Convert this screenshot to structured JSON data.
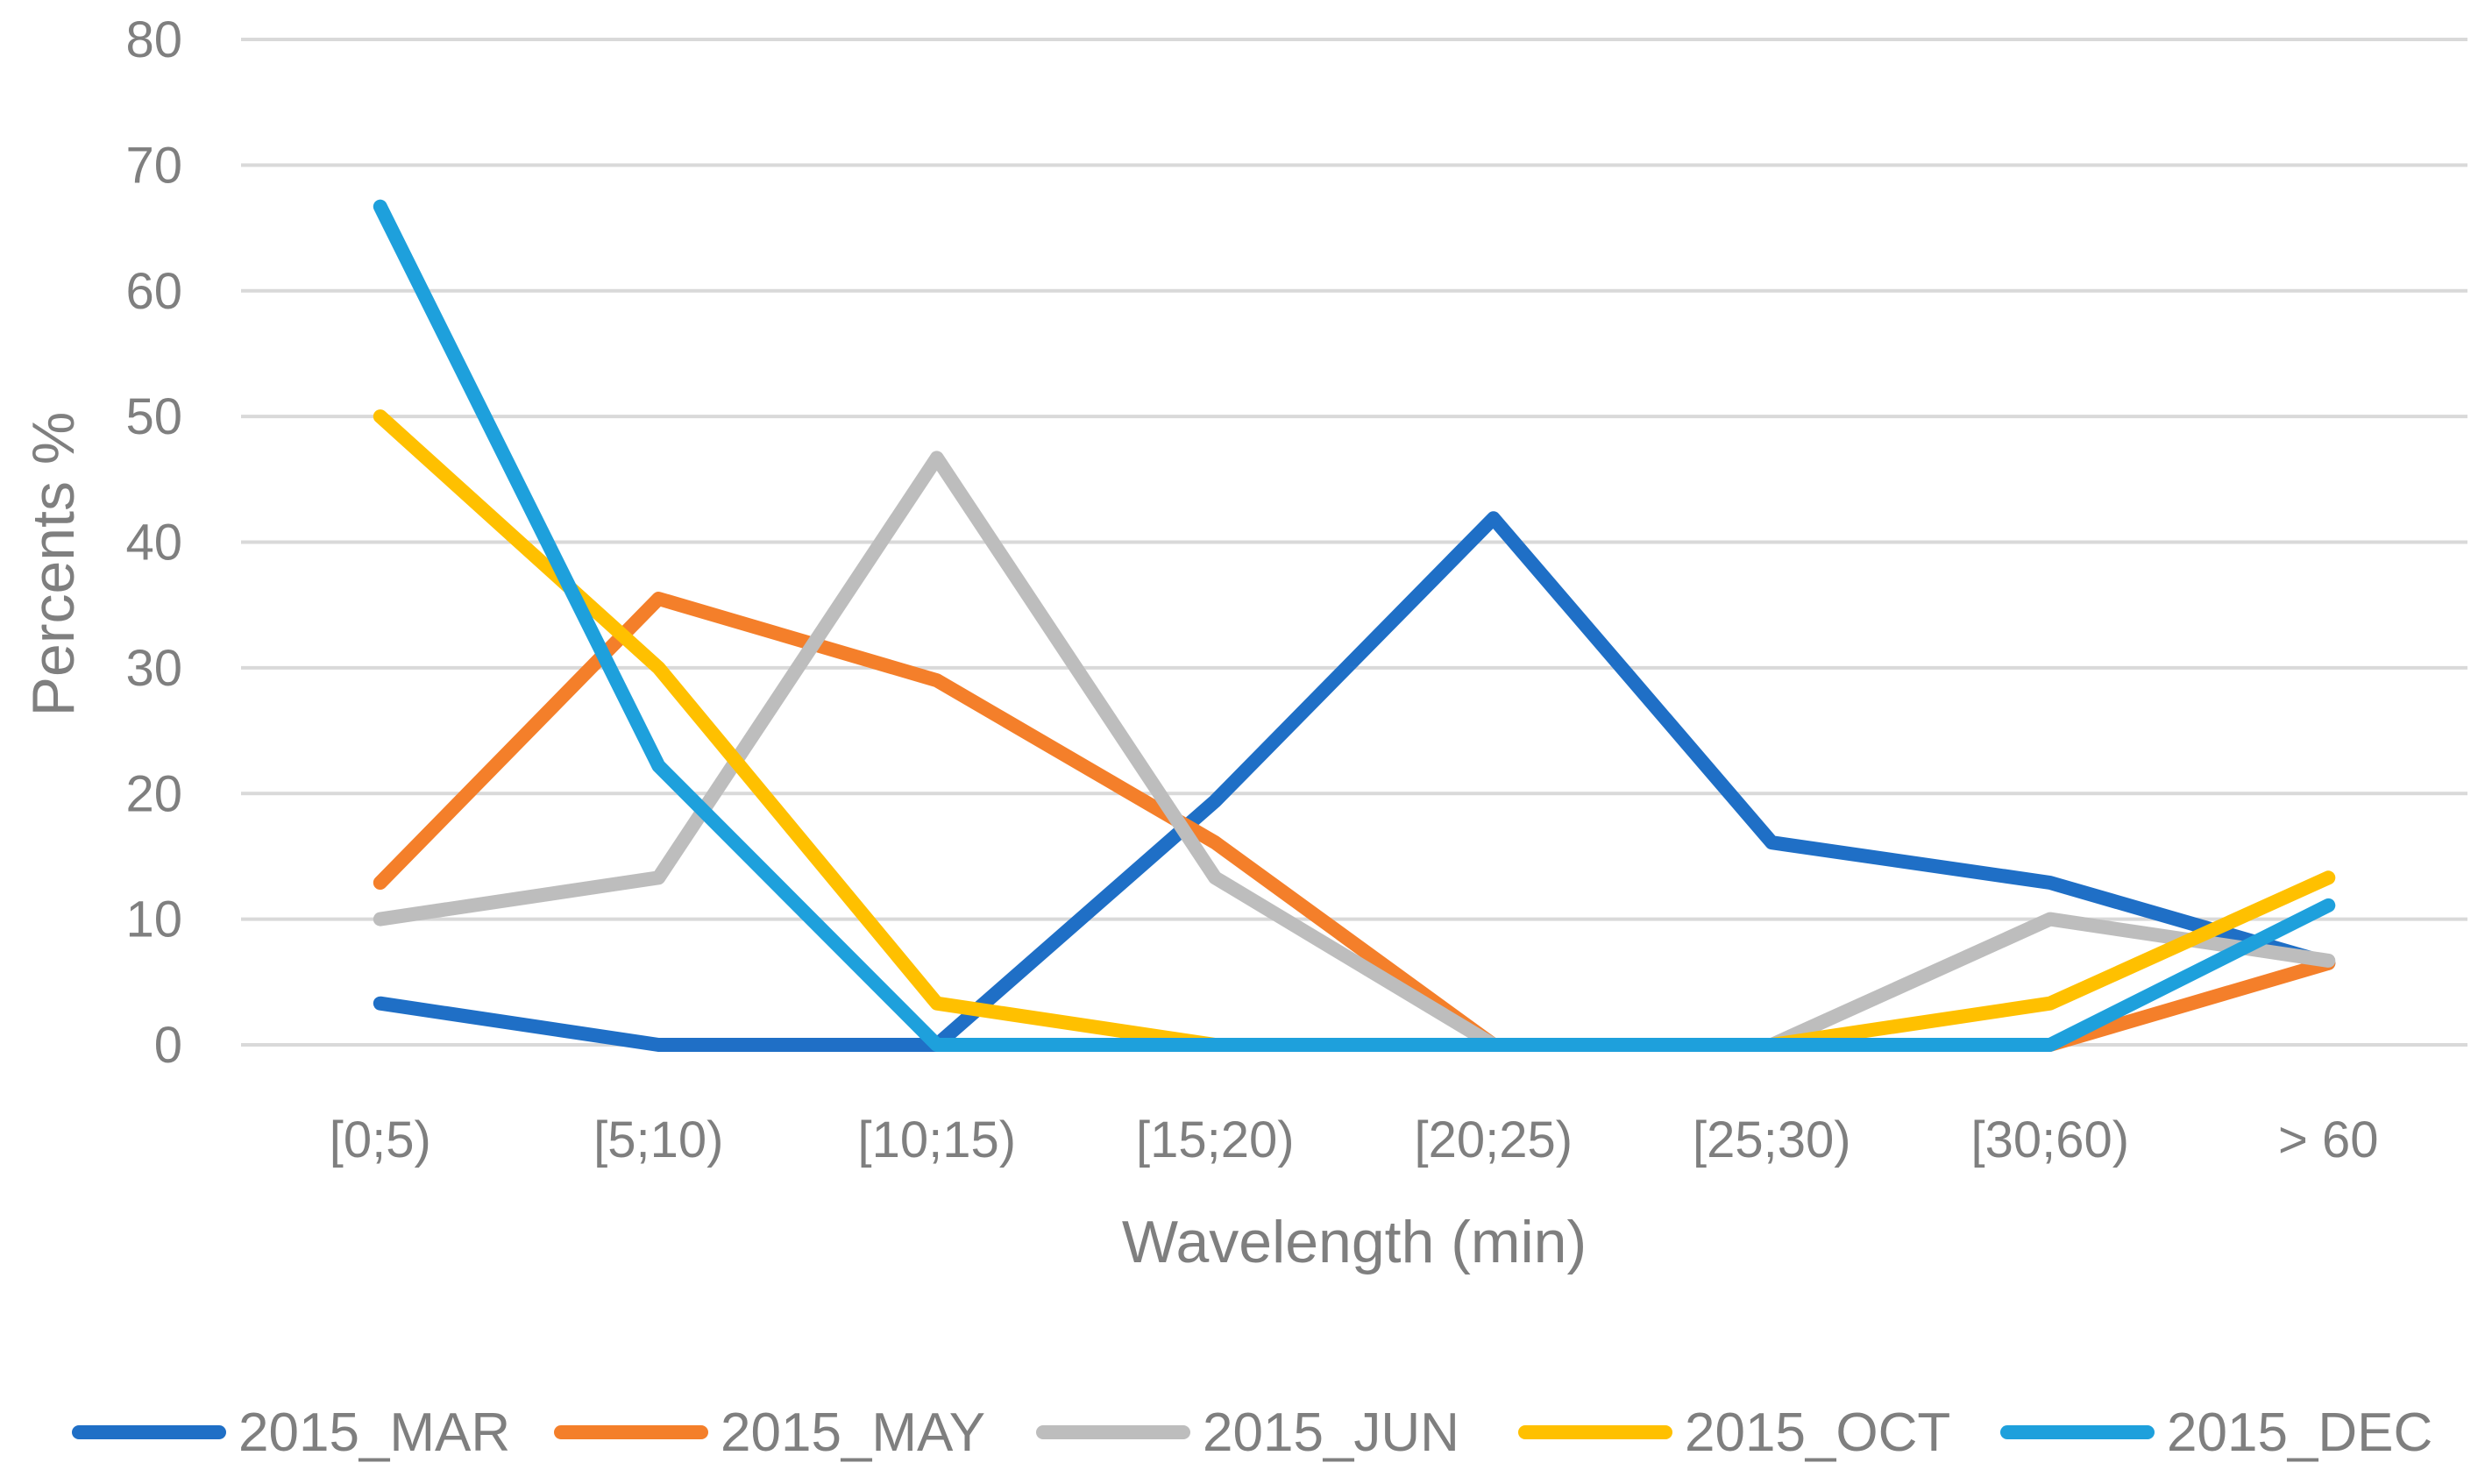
{
  "chart_data": {
    "type": "line",
    "title": "",
    "xlabel": "Wavelength (min)",
    "ylabel": "Percents %",
    "categories": [
      "[0;5)",
      "[5;10)",
      "[10;15)",
      "[15;20)",
      "[20;25)",
      "[25;30)",
      "[30;60)",
      "> 60"
    ],
    "ylim": [
      0,
      80
    ],
    "yticks": [
      0,
      10,
      20,
      30,
      40,
      50,
      60,
      70,
      80
    ],
    "grid": true,
    "legend_position": "bottom",
    "series": [
      {
        "name": "2015_MAR",
        "color": "#1f6fc6",
        "values": [
          3.3,
          0,
          0,
          19.4,
          41.9,
          16.1,
          12.9,
          6.5
        ]
      },
      {
        "name": "2015_MAY",
        "color": "#f47f2a",
        "values": [
          12.9,
          35.5,
          29.0,
          16.1,
          0,
          0,
          0,
          6.5
        ]
      },
      {
        "name": "2015_JUN",
        "color": "#bdbdbd",
        "values": [
          10.0,
          13.3,
          46.7,
          13.3,
          0,
          0,
          10.0,
          6.7
        ]
      },
      {
        "name": "2015_OCT",
        "color": "#ffc000",
        "values": [
          50.0,
          30.0,
          3.3,
          0,
          0,
          0,
          3.3,
          13.3
        ]
      },
      {
        "name": "2015_DEC",
        "color": "#1ea0dc",
        "values": [
          66.7,
          22.2,
          0,
          0,
          0,
          0,
          0,
          11.1
        ]
      }
    ]
  }
}
